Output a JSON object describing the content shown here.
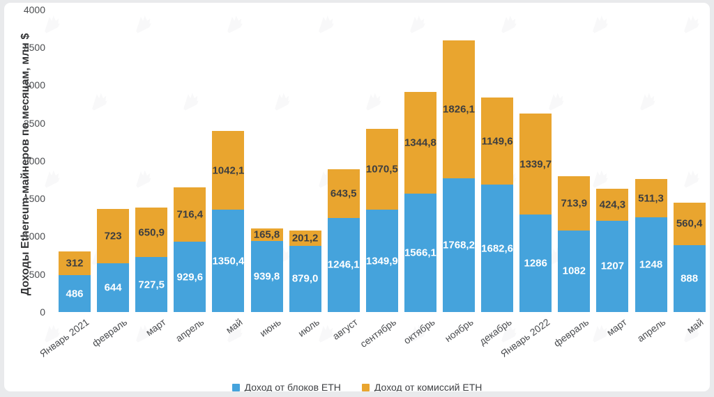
{
  "page": {
    "background": "#e9eaec",
    "card_background": "#ffffff"
  },
  "chart_data": {
    "type": "bar",
    "stacked": true,
    "title": "",
    "xlabel": "",
    "ylabel": "Доходы Ethereum-майнеров по месяцам, млн $",
    "ylim": [
      0,
      4000
    ],
    "yticks": [
      0,
      500,
      1000,
      1500,
      2000,
      2500,
      3000,
      3500,
      4000
    ],
    "grid": false,
    "legend_position": "bottom-center",
    "categories": [
      "Январь 2021",
      "февраль",
      "март",
      "апрель",
      "май",
      "июнь",
      "июль",
      "август",
      "сентябрь",
      "октябрь",
      "ноябрь",
      "декабрь",
      "Январь 2022",
      "февраль",
      "март",
      "апрель",
      "май"
    ],
    "series": [
      {
        "name": "Доход от блоков ETH",
        "color": "#45a3dc",
        "label_color": "#ffffff",
        "values": [
          486,
          644,
          727.5,
          929.6,
          1350.4,
          939.8,
          879.0,
          1246.1,
          1349.9,
          1566.1,
          1768.2,
          1682.6,
          1286,
          1082,
          1207,
          1248,
          888
        ],
        "labels": [
          "486",
          "644",
          "727,5",
          "929,6",
          "1350,4",
          "939,8",
          "879,0",
          "1246,1",
          "1349,9",
          "1566,1",
          "1768,2",
          "1682,6",
          "1286",
          "1082",
          "1207",
          "1248",
          "888"
        ]
      },
      {
        "name": "Доход от комиссий ETH",
        "color": "#e9a52f",
        "label_color": "#3d3e40",
        "values": [
          312,
          723,
          650.9,
          716.4,
          1042.1,
          165.8,
          201.2,
          643.5,
          1070.5,
          1344.8,
          1826.1,
          1149.6,
          1339.7,
          713.9,
          424.3,
          511.3,
          560.4
        ],
        "labels": [
          "312",
          "723",
          "650,9",
          "716,4",
          "1042,1",
          "165,8",
          "201,2",
          "643,5",
          "1070,5",
          "1344,8",
          "1826,1",
          "1149,6",
          "1339,7",
          "713,9",
          "424,3",
          "511,3",
          "560,4"
        ]
      }
    ]
  },
  "watermark": {
    "name": "forklog-logo",
    "color": "#8a909a"
  }
}
